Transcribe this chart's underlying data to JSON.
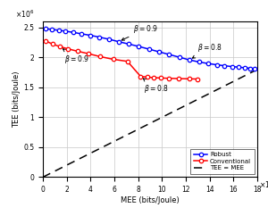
{
  "title": "",
  "xlabel": "MEE (bits/Joule)",
  "ylabel": "TEE (bits/Joule)",
  "xlim": [
    0,
    1800000.0
  ],
  "ylim": [
    0,
    2600000.0
  ],
  "xticks": [
    0,
    200000.0,
    400000.0,
    600000.0,
    800000.0,
    1000000.0,
    1200000.0,
    1400000.0,
    1600000.0,
    1800000.0
  ],
  "yticks": [
    0,
    500000.0,
    1000000.0,
    1500000.0,
    2000000.0,
    2500000.0
  ],
  "xtick_labels": [
    "0",
    "2",
    "4",
    "6",
    "8",
    "10",
    "12",
    "14",
    "16",
    "18"
  ],
  "ytick_labels": [
    "0",
    "0.5",
    "1",
    "1.5",
    "2",
    "2.5"
  ],
  "robust_color": "#0000FF",
  "conventional_color": "#FF0000",
  "dashed_color": "#000000",
  "robust_x": [
    25000.0,
    75000.0,
    135000.0,
    190000.0,
    255000.0,
    325000.0,
    400000.0,
    475000.0,
    555000.0,
    635000.0,
    720000.0,
    805000.0,
    890000.0,
    975000.0,
    1060000.0,
    1145000.0,
    1230000.0,
    1310000.0,
    1385000.0,
    1460000.0,
    1525000.0,
    1590000.0,
    1645000.0,
    1695000.0,
    1740000.0,
    1780000.0
  ],
  "robust_y": [
    2480000.0,
    2468000.0,
    2455000.0,
    2440000.0,
    2420000.0,
    2395000.0,
    2370000.0,
    2340000.0,
    2305000.0,
    2265000.0,
    2225000.0,
    2185000.0,
    2140000.0,
    2095000.0,
    2050000.0,
    2005000.0,
    1960000.0,
    1925000.0,
    1900000.0,
    1878000.0,
    1862000.0,
    1848000.0,
    1838000.0,
    1828000.0,
    1818000.0,
    1810000.0
  ],
  "conventional_x": [
    25000.0,
    80000.0,
    145000.0,
    210000.0,
    290000.0,
    380000.0,
    480000.0,
    590000.0,
    710000.0,
    820000.0,
    875000.0,
    930000.0,
    990000.0,
    1060000.0,
    1140000.0,
    1230000.0,
    1300000.0
  ],
  "conventional_y": [
    2275000.0,
    2225000.0,
    2180000.0,
    2145000.0,
    2105000.0,
    2065000.0,
    2015000.0,
    1970000.0,
    1935000.0,
    1685000.0,
    1672000.0,
    1663000.0,
    1657000.0,
    1652000.0,
    1647000.0,
    1643000.0,
    1640000.0
  ],
  "legend_labels": [
    "Robust",
    "Conventional",
    "TEE = MEE"
  ],
  "background_color": "#FFFFFF",
  "grid_color": "#C8C8C8"
}
